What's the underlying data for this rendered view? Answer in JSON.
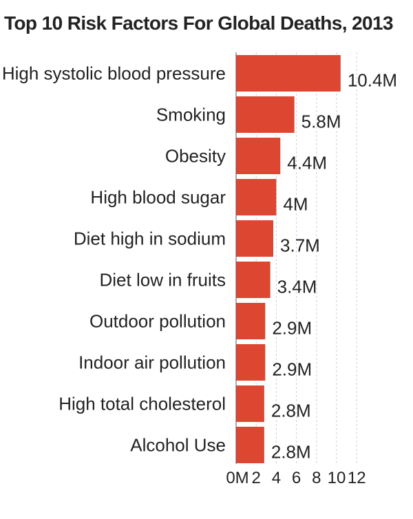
{
  "chart_data": {
    "type": "bar",
    "orientation": "horizontal",
    "title": "Top 10 Risk Factors For Global Deaths, 2013",
    "categories": [
      "High systolic blood pressure",
      "Smoking",
      "Obesity",
      "High blood sugar",
      "Diet high in sodium",
      "Diet low in fruits",
      "Outdoor pollution",
      "Indoor air pollution",
      "High total cholesterol",
      "Alcohol Use"
    ],
    "values": [
      10.4,
      5.8,
      4.4,
      4,
      3.7,
      3.4,
      2.9,
      2.9,
      2.8,
      2.8
    ],
    "value_labels": [
      "10.4M",
      "5.8M",
      "4.4M",
      "4M",
      "3.7M",
      "3.4M",
      "2.9M",
      "2.9M",
      "2.8M",
      "2.8M"
    ],
    "xticks": [
      0,
      2,
      4,
      6,
      8,
      10,
      12
    ],
    "xtick_labels": [
      "0M",
      "2",
      "4",
      "6",
      "8",
      "10",
      "12"
    ],
    "xlim": [
      0,
      12
    ],
    "xlabel": "",
    "ylabel": "",
    "grid": "vertical dashed",
    "bar_color": "#dd4631"
  }
}
